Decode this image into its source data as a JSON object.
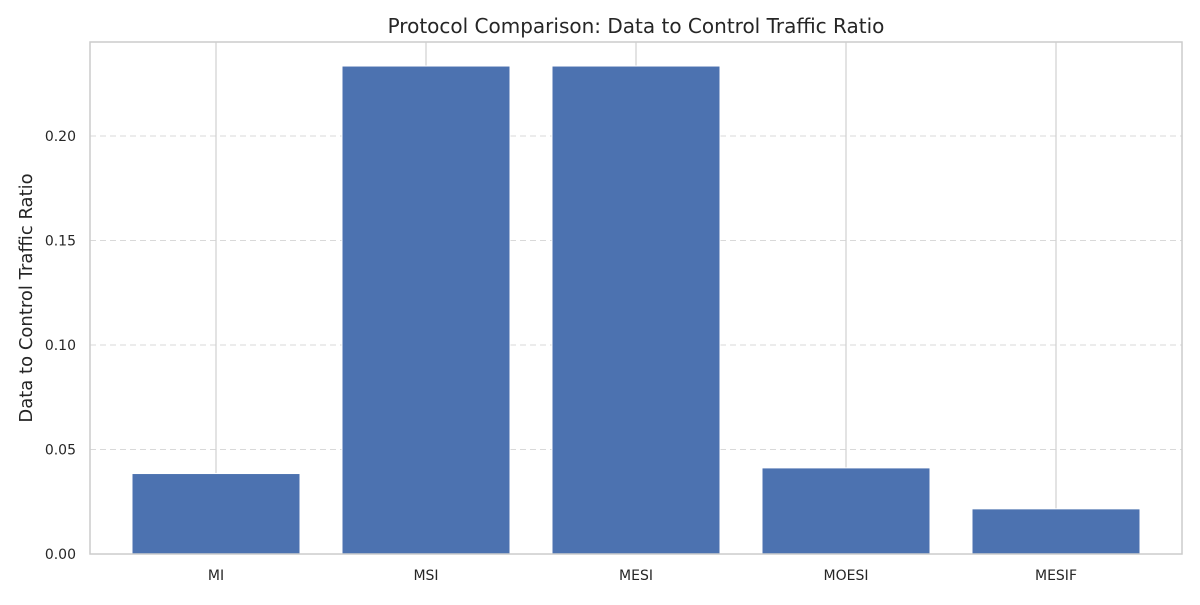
{
  "chart_data": {
    "type": "bar",
    "title": "Protocol Comparison: Data to Control Traffic Ratio",
    "xlabel": "",
    "ylabel": "Data to Control Traffic Ratio",
    "categories": [
      "MI",
      "MSI",
      "MESI",
      "MOESI",
      "MESIF"
    ],
    "values": [
      0.0385,
      0.2335,
      0.2335,
      0.0412,
      0.0216
    ],
    "ylim": [
      0,
      0.245
    ],
    "yticks": [
      0.0,
      0.05,
      0.1,
      0.15,
      0.2
    ],
    "ytick_labels": [
      "0.00",
      "0.05",
      "0.10",
      "0.15",
      "0.20"
    ],
    "grid": {
      "y": "dashed",
      "x": "solid"
    },
    "bar_color": "#4c72b0"
  }
}
